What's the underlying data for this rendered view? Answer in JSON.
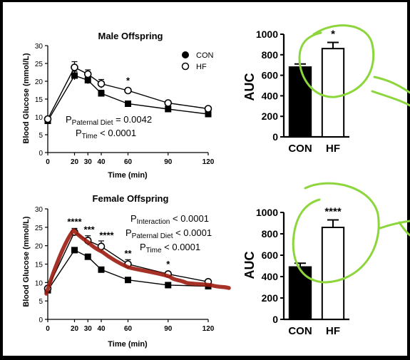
{
  "chart_data": [
    {
      "type": "line",
      "title": "Male Offspring",
      "xlabel": "Time (min)",
      "ylabel": "Blood Glucose (mmol/L)",
      "x": [
        0,
        20,
        30,
        40,
        60,
        90,
        120
      ],
      "xticks": [
        "0",
        "20",
        "30",
        "40",
        "60",
        "90",
        "120"
      ],
      "xlim": [
        0,
        120
      ],
      "yticks": [
        "0",
        "5",
        "10",
        "15",
        "20",
        "25",
        "30"
      ],
      "ylim": [
        0,
        30
      ],
      "series": [
        {
          "name": "CON",
          "values": [
            8.9,
            21.6,
            20.3,
            16.6,
            13.7,
            12.2,
            10.8
          ],
          "errors": [
            0.5,
            1.2,
            1.0,
            0.9,
            0.6,
            0.5,
            0.5
          ],
          "fill": "#000000"
        },
        {
          "name": "HF",
          "values": [
            9.4,
            23.9,
            22.0,
            19.3,
            17.4,
            13.9,
            12.3
          ],
          "errors": [
            0.5,
            1.6,
            1.2,
            1.2,
            0.6,
            0.5,
            0.5
          ],
          "fill": "#ffffff"
        }
      ],
      "annotations": [
        {
          "text": "*",
          "x": 60,
          "y": 19.3
        }
      ],
      "stats": [
        {
          "p": "P",
          "sub": "Paternal Diet",
          "rest": " = 0.0042"
        },
        {
          "p": "P",
          "sub": "Time",
          "rest": " < 0.0001"
        }
      ],
      "legend": "top-right"
    },
    {
      "type": "bar",
      "ylabel": "AUC",
      "categories": [
        "CON",
        "HF"
      ],
      "values": [
        680,
        860
      ],
      "errors": [
        30,
        60
      ],
      "colors": [
        "#000000",
        "#ffffff"
      ],
      "yticks": [
        "0",
        "200",
        "400",
        "600",
        "800",
        "1000"
      ],
      "ylim": [
        0,
        1000
      ],
      "annotations": [
        {
          "text": "*",
          "category": "HF"
        }
      ]
    },
    {
      "type": "line",
      "title": "Female Offspring",
      "xlabel": "Time (min)",
      "ylabel": "Blood Glucose (mmol/L)",
      "x": [
        0,
        20,
        30,
        40,
        60,
        90,
        120
      ],
      "xticks": [
        "0",
        "20",
        "30",
        "40",
        "60",
        "90",
        "120"
      ],
      "xlim": [
        0,
        120
      ],
      "yticks": [
        "0",
        "5",
        "10",
        "15",
        "20",
        "25",
        "30"
      ],
      "ylim": [
        0,
        30
      ],
      "series": [
        {
          "name": "CON",
          "values": [
            7.9,
            18.8,
            17.0,
            13.5,
            10.7,
            9.3,
            9.0
          ],
          "errors": [
            0.4,
            0.5,
            0.5,
            0.5,
            0.4,
            0.4,
            0.4
          ],
          "fill": "#000000"
        },
        {
          "name": "HF",
          "values": [
            8.4,
            23.7,
            21.4,
            19.8,
            15.0,
            12.3,
            10.2
          ],
          "errors": [
            0.5,
            1.0,
            1.3,
            1.5,
            1.2,
            0.5,
            0.5
          ],
          "fill": "#ffffff"
        }
      ],
      "annotations": [
        {
          "text": "****",
          "x": 20,
          "y": 25.6
        },
        {
          "text": "***",
          "x": 31,
          "y": 23.5
        },
        {
          "text": "****",
          "x": 44,
          "y": 22.0
        },
        {
          "text": "**",
          "x": 60,
          "y": 17.0
        },
        {
          "text": "*",
          "x": 90,
          "y": 14.1
        }
      ],
      "stats": [
        {
          "p": "P",
          "sub": "Interaction",
          "rest": " < 0.0001"
        },
        {
          "p": "P",
          "sub": "Paternal Diet",
          "rest": " < 0.0001"
        },
        {
          "p": "P",
          "sub": "Time",
          "rest": " < 0.0001"
        }
      ]
    },
    {
      "type": "bar",
      "ylabel": "AUC",
      "categories": [
        "CON",
        "HF"
      ],
      "values": [
        490,
        860
      ],
      "errors": [
        35,
        70
      ],
      "colors": [
        "#000000",
        "#ffffff"
      ],
      "yticks": [
        "0",
        "200",
        "400",
        "600",
        "800",
        "1000"
      ],
      "ylim": [
        0,
        1000
      ],
      "annotations": [
        {
          "text": "****",
          "category": "HF"
        }
      ]
    }
  ],
  "highlight_color": "#8cd63c",
  "overlay_color": "#9c1c10"
}
